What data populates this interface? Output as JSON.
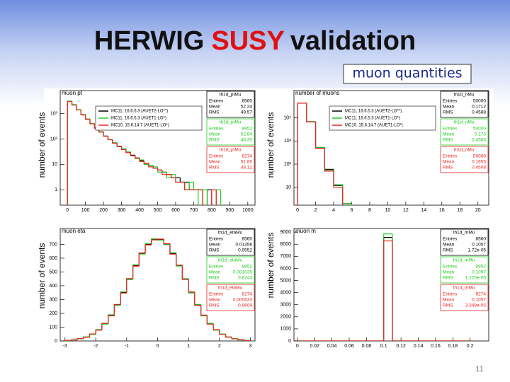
{
  "slide": {
    "title_parts": [
      "HERWIG",
      "SUSY",
      "validation"
    ],
    "subtitle": "muon quantities",
    "page_number": "11"
  },
  "chart_data": [
    {
      "type": "histogram",
      "title": "muon pt",
      "ylabel": "number of events",
      "log_y": true,
      "bins": [
        0,
        25,
        50,
        75,
        100,
        125,
        150,
        175,
        200,
        225,
        250,
        275,
        300,
        325,
        350,
        375,
        400,
        425,
        450,
        475,
        500,
        525,
        550,
        575,
        600,
        625,
        650,
        675,
        700,
        725,
        750,
        775,
        800,
        825,
        850,
        875,
        900,
        925,
        950,
        975,
        1000
      ],
      "xlim": [
        -40,
        1040
      ],
      "xticks": [
        0,
        100,
        200,
        300,
        400,
        500,
        600,
        700,
        800,
        900,
        1000
      ],
      "ylim": [
        0.25,
        8000
      ],
      "yticks": [
        1,
        10,
        {
          "value": 100,
          "label": "10²"
        },
        {
          "value": 1000,
          "label": "10³"
        }
      ],
      "stats_labels": [
        "Entries",
        "Mean",
        "RMS"
      ],
      "series": [
        {
          "name": "MC11, 16.6.5.3 (AUET2-LO**)",
          "color": "#000000",
          "stats": {
            "name": "th1d_ptMu",
            "entries": 8560,
            "mean": 52.24,
            "rms": 49.57
          },
          "values": [
            3000,
            2200,
            1400,
            900,
            600,
            400,
            270,
            190,
            130,
            95,
            70,
            52,
            40,
            30,
            23,
            18,
            14,
            11,
            9,
            7,
            6,
            5,
            4,
            3,
            3,
            2,
            2,
            1,
            1,
            1,
            0,
            1,
            0,
            0,
            0,
            0,
            0,
            0,
            0,
            0
          ]
        },
        {
          "name": "MC11, 16.6.5.3 (AUET1-LO*)",
          "color": "#22cc22",
          "stats": {
            "name": "th1d_ptMu",
            "entries": 8852,
            "mean": 52.84,
            "rms": 48.35
          },
          "values": [
            3100,
            2250,
            1420,
            920,
            610,
            405,
            275,
            195,
            128,
            96,
            72,
            50,
            41,
            31,
            22,
            17,
            15,
            10,
            9,
            8,
            5,
            5,
            3,
            4,
            2,
            2,
            1,
            2,
            1,
            0,
            1,
            0,
            0,
            1,
            0,
            0,
            0,
            0,
            0,
            0
          ]
        },
        {
          "name": "MC10, 15.6.14.7 (AUET1-LO*)",
          "color": "#ee2222",
          "stats": {
            "name": "th1d_ptMu",
            "entries": 8274,
            "mean": 51.85,
            "rms": 48.12
          },
          "values": [
            2950,
            2150,
            1380,
            880,
            590,
            395,
            265,
            185,
            127,
            93,
            68,
            51,
            38,
            29,
            22,
            18,
            13,
            11,
            8,
            7,
            6,
            4,
            4,
            3,
            2,
            2,
            1,
            1,
            1,
            1,
            0,
            0,
            1,
            0,
            0,
            0,
            0,
            0,
            0,
            0
          ]
        }
      ]
    },
    {
      "type": "histogram",
      "title": "number of muons",
      "ylabel": "number of events",
      "log_y": true,
      "bins": [
        0,
        1,
        2,
        3,
        4,
        5,
        6,
        7,
        8,
        9,
        10,
        11,
        12,
        13,
        14,
        15,
        16,
        17,
        18,
        19,
        20
      ],
      "xlim": [
        -0.4,
        21.2
      ],
      "xticks": [
        0,
        2,
        4,
        6,
        8,
        10,
        12,
        14,
        16,
        18,
        20
      ],
      "ylim": [
        1.7,
        150000
      ],
      "yticks": [
        10,
        {
          "value": 100,
          "label": "10²"
        },
        {
          "value": 1000,
          "label": "10³"
        },
        {
          "value": 10000,
          "label": "10⁴"
        }
      ],
      "stats_labels": [
        "Entries",
        "Mean",
        "RMS"
      ],
      "series": [
        {
          "name": "MC11, 16.6.5.3 (AUET2-LO**)",
          "color": "#000000",
          "stats": {
            "name": "th1d_nMu",
            "entries": 50000,
            "mean": 0.1712,
            "rms": 0.4588
          },
          "values": [
            42600,
            6800,
            520,
            60,
            12,
            2,
            0,
            0,
            0,
            0,
            0,
            0,
            0,
            0,
            0,
            0,
            0,
            0,
            0,
            0
          ]
        },
        {
          "name": "MC11, 16.6.5.3 (AUET1-LO*)",
          "color": "#22cc22",
          "stats": {
            "name": "th1d_nMu",
            "entries": 50000,
            "mean": 0.173,
            "rms": 0.4585
          },
          "values": [
            42500,
            6900,
            530,
            55,
            13,
            2,
            0,
            0,
            0,
            0,
            0,
            0,
            0,
            0,
            0,
            0,
            0,
            0,
            0,
            0
          ]
        },
        {
          "name": "MC10, 15.6.14.7 (AUET1-LO*)",
          "color": "#ee2222",
          "stats": {
            "name": "th1d_nMu",
            "entries": 50000,
            "mean": 0.1655,
            "rms": 0.4508
          },
          "values": [
            42800,
            6700,
            480,
            50,
            10,
            1,
            0,
            0,
            0,
            0,
            0,
            0,
            0,
            0,
            0,
            0,
            0,
            0,
            0,
            0
          ]
        }
      ]
    },
    {
      "type": "histogram",
      "title": "muon eta",
      "ylabel": "number of events",
      "log_y": false,
      "bins": [
        -3,
        -2.8,
        -2.6,
        -2.4,
        -2.2,
        -2,
        -1.8,
        -1.6,
        -1.4,
        -1.2,
        -1,
        -0.8,
        -0.6,
        -0.4,
        -0.2,
        0,
        0.2,
        0.4,
        0.6,
        0.8,
        1,
        1.2,
        1.4,
        1.6,
        1.8,
        2,
        2.2,
        2.4,
        2.6,
        2.8,
        3
      ],
      "xlim": [
        -3.15,
        3.15
      ],
      "xticks": [
        -3,
        -2,
        -1,
        0,
        1,
        2,
        3
      ],
      "ylim": [
        0,
        815
      ],
      "yticks": [
        0,
        100,
        200,
        300,
        400,
        500,
        600,
        700
      ],
      "stats_labels": [
        "Entries",
        "Mean",
        "RMS"
      ],
      "series": [
        {
          "color": "#000000",
          "stats": {
            "name": "th1d_etaMu",
            "entries": 8560,
            "mean": 0.01356,
            "rms": 0.9552
          },
          "values": [
            4,
            8,
            16,
            28,
            49,
            80,
            125,
            185,
            261,
            351,
            449,
            547,
            634,
            700,
            735,
            735,
            700,
            634,
            547,
            449,
            351,
            261,
            185,
            125,
            80,
            49,
            28,
            16,
            8,
            4
          ]
        },
        {
          "color": "#22cc22",
          "stats": {
            "name": "th1d_etaMu",
            "entries": 8852,
            "mean": 0.001035,
            "rms": 0.8743
          },
          "values": [
            3,
            9,
            15,
            30,
            47,
            83,
            122,
            190,
            258,
            356,
            445,
            552,
            630,
            705,
            740,
            730,
            698,
            640,
            543,
            452,
            348,
            265,
            182,
            128,
            78,
            50,
            27,
            17,
            7,
            5
          ]
        },
        {
          "color": "#ee2222",
          "stats": {
            "name": "th1d_etaMu",
            "entries": 8274,
            "mean": 0.000633,
            "rms": 0.9609
          },
          "values": [
            5,
            7,
            17,
            27,
            51,
            78,
            128,
            182,
            265,
            347,
            452,
            542,
            638,
            696,
            732,
            738,
            705,
            629,
            550,
            446,
            355,
            258,
            188,
            122,
            82,
            47,
            29,
            15,
            9,
            3
          ]
        }
      ]
    },
    {
      "type": "histogram",
      "title": "muon m",
      "ylabel": "number of events",
      "log_y": false,
      "bins": [
        0,
        0.01,
        0.02,
        0.03,
        0.04,
        0.05,
        0.06,
        0.07,
        0.08,
        0.09,
        0.1,
        0.11,
        0.12,
        0.13,
        0.14,
        0.15,
        0.16,
        0.17,
        0.18,
        0.19,
        0.2
      ],
      "xlim": [
        -0.004,
        0.2216
      ],
      "xticks": [
        0,
        0.02,
        0.04,
        0.06,
        0.08,
        0.1,
        0.12,
        0.14,
        0.16,
        0.18,
        0.2
      ],
      "ylim": [
        0,
        9300
      ],
      "yticks": [
        0,
        1000,
        2000,
        3000,
        4000,
        5000,
        6000,
        7000,
        8000,
        9000
      ],
      "stats_labels": [
        "Entries",
        "Mean",
        "RMS"
      ],
      "series": [
        {
          "color": "#000000",
          "stats": {
            "name": "th1d_mMu",
            "entries": 8560,
            "mean": 0.1057,
            "rms": "1.72e-05"
          },
          "values": [
            0,
            0,
            0,
            0,
            0,
            0,
            0,
            0,
            0,
            0,
            8560,
            0,
            0,
            0,
            0,
            0,
            0,
            0,
            0,
            0
          ]
        },
        {
          "color": "#22cc22",
          "stats": {
            "name": "th1d_mMu",
            "entries": 8852,
            "mean": 0.1057,
            "rms": "1.225e-05"
          },
          "values": [
            0,
            0,
            0,
            0,
            0,
            0,
            0,
            0,
            0,
            0,
            8852,
            0,
            0,
            0,
            0,
            0,
            0,
            0,
            0,
            0
          ]
        },
        {
          "color": "#ee2222",
          "stats": {
            "name": "th1d_mMu",
            "entries": 8274,
            "mean": 0.1057,
            "rms": "3.349e-05"
          },
          "values": [
            0,
            0,
            0,
            0,
            0,
            0,
            0,
            0,
            0,
            0,
            8274,
            0,
            0,
            0,
            0,
            0,
            0,
            0,
            0,
            0
          ]
        }
      ]
    }
  ]
}
